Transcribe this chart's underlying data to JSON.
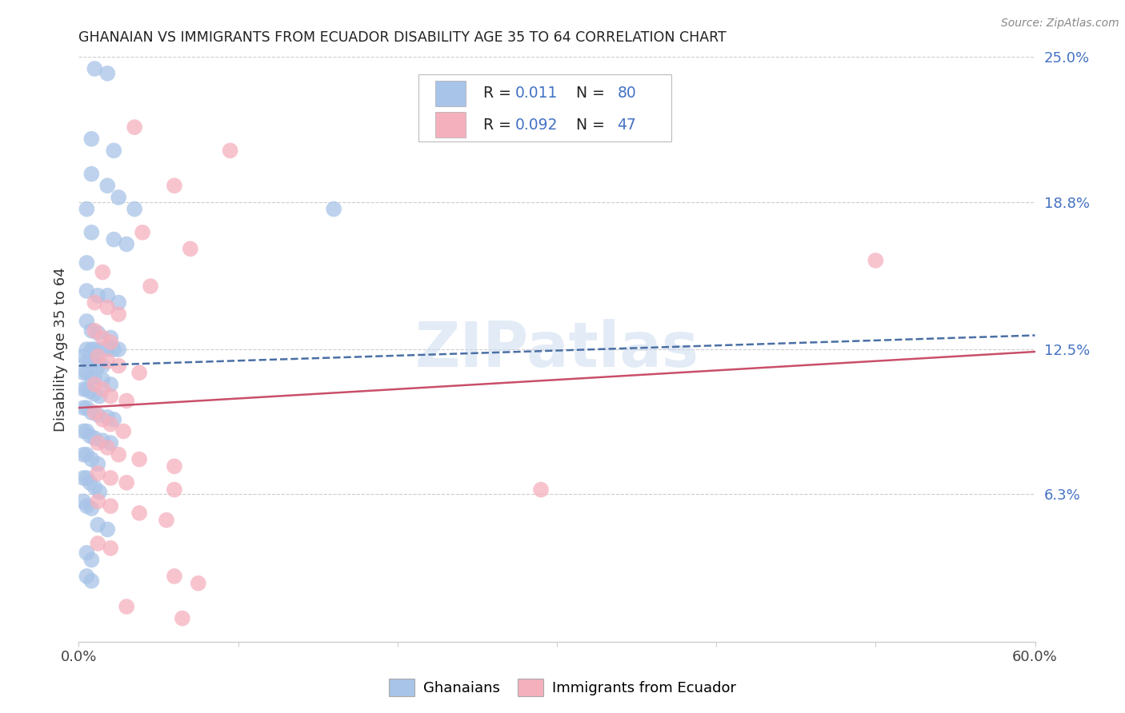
{
  "title": "GHANAIAN VS IMMIGRANTS FROM ECUADOR DISABILITY AGE 35 TO 64 CORRELATION CHART",
  "source": "Source: ZipAtlas.com",
  "ylabel": "Disability Age 35 to 64",
  "xlim": [
    0.0,
    0.6
  ],
  "ylim": [
    0.0,
    0.25
  ],
  "grid_yticks": [
    0.063,
    0.125,
    0.188,
    0.25
  ],
  "blue_color": "#a8c4e8",
  "pink_color": "#f5b0be",
  "blue_line_color": "#4a6fa5",
  "pink_line_color": "#c94f6a",
  "text_dark": "#222222",
  "text_blue": "#4472c4",
  "text_red": "#cc3355",
  "blue_scatter": [
    [
      0.01,
      0.245
    ],
    [
      0.018,
      0.243
    ],
    [
      0.008,
      0.215
    ],
    [
      0.022,
      0.21
    ],
    [
      0.008,
      0.2
    ],
    [
      0.018,
      0.195
    ],
    [
      0.025,
      0.19
    ],
    [
      0.035,
      0.185
    ],
    [
      0.005,
      0.185
    ],
    [
      0.008,
      0.175
    ],
    [
      0.022,
      0.172
    ],
    [
      0.03,
      0.17
    ],
    [
      0.005,
      0.162
    ],
    [
      0.005,
      0.15
    ],
    [
      0.012,
      0.148
    ],
    [
      0.018,
      0.148
    ],
    [
      0.025,
      0.145
    ],
    [
      0.005,
      0.137
    ],
    [
      0.008,
      0.133
    ],
    [
      0.012,
      0.132
    ],
    [
      0.02,
      0.13
    ],
    [
      0.005,
      0.125
    ],
    [
      0.008,
      0.125
    ],
    [
      0.01,
      0.125
    ],
    [
      0.014,
      0.125
    ],
    [
      0.018,
      0.125
    ],
    [
      0.022,
      0.125
    ],
    [
      0.025,
      0.125
    ],
    [
      0.003,
      0.122
    ],
    [
      0.005,
      0.12
    ],
    [
      0.007,
      0.12
    ],
    [
      0.01,
      0.12
    ],
    [
      0.012,
      0.118
    ],
    [
      0.015,
      0.118
    ],
    [
      0.003,
      0.115
    ],
    [
      0.005,
      0.115
    ],
    [
      0.008,
      0.113
    ],
    [
      0.01,
      0.113
    ],
    [
      0.015,
      0.112
    ],
    [
      0.02,
      0.11
    ],
    [
      0.003,
      0.108
    ],
    [
      0.005,
      0.108
    ],
    [
      0.007,
      0.107
    ],
    [
      0.01,
      0.106
    ],
    [
      0.013,
      0.105
    ],
    [
      0.003,
      0.1
    ],
    [
      0.005,
      0.1
    ],
    [
      0.008,
      0.098
    ],
    [
      0.012,
      0.097
    ],
    [
      0.018,
      0.096
    ],
    [
      0.022,
      0.095
    ],
    [
      0.003,
      0.09
    ],
    [
      0.005,
      0.09
    ],
    [
      0.007,
      0.088
    ],
    [
      0.01,
      0.087
    ],
    [
      0.015,
      0.086
    ],
    [
      0.02,
      0.085
    ],
    [
      0.003,
      0.08
    ],
    [
      0.005,
      0.08
    ],
    [
      0.008,
      0.078
    ],
    [
      0.012,
      0.076
    ],
    [
      0.003,
      0.07
    ],
    [
      0.005,
      0.07
    ],
    [
      0.007,
      0.068
    ],
    [
      0.01,
      0.066
    ],
    [
      0.013,
      0.064
    ],
    [
      0.003,
      0.06
    ],
    [
      0.005,
      0.058
    ],
    [
      0.008,
      0.057
    ],
    [
      0.012,
      0.05
    ],
    [
      0.018,
      0.048
    ],
    [
      0.005,
      0.038
    ],
    [
      0.008,
      0.035
    ],
    [
      0.005,
      0.028
    ],
    [
      0.008,
      0.026
    ],
    [
      0.16,
      0.185
    ]
  ],
  "pink_scatter": [
    [
      0.035,
      0.22
    ],
    [
      0.095,
      0.21
    ],
    [
      0.06,
      0.195
    ],
    [
      0.04,
      0.175
    ],
    [
      0.07,
      0.168
    ],
    [
      0.015,
      0.158
    ],
    [
      0.045,
      0.152
    ],
    [
      0.01,
      0.145
    ],
    [
      0.018,
      0.143
    ],
    [
      0.025,
      0.14
    ],
    [
      0.01,
      0.133
    ],
    [
      0.015,
      0.13
    ],
    [
      0.02,
      0.128
    ],
    [
      0.012,
      0.122
    ],
    [
      0.018,
      0.12
    ],
    [
      0.025,
      0.118
    ],
    [
      0.038,
      0.115
    ],
    [
      0.01,
      0.11
    ],
    [
      0.015,
      0.108
    ],
    [
      0.02,
      0.105
    ],
    [
      0.03,
      0.103
    ],
    [
      0.01,
      0.098
    ],
    [
      0.015,
      0.095
    ],
    [
      0.02,
      0.093
    ],
    [
      0.028,
      0.09
    ],
    [
      0.012,
      0.085
    ],
    [
      0.018,
      0.083
    ],
    [
      0.025,
      0.08
    ],
    [
      0.038,
      0.078
    ],
    [
      0.06,
      0.075
    ],
    [
      0.012,
      0.072
    ],
    [
      0.02,
      0.07
    ],
    [
      0.03,
      0.068
    ],
    [
      0.06,
      0.065
    ],
    [
      0.012,
      0.06
    ],
    [
      0.02,
      0.058
    ],
    [
      0.038,
      0.055
    ],
    [
      0.055,
      0.052
    ],
    [
      0.012,
      0.042
    ],
    [
      0.02,
      0.04
    ],
    [
      0.29,
      0.065
    ],
    [
      0.5,
      0.163
    ],
    [
      0.06,
      0.028
    ],
    [
      0.075,
      0.025
    ],
    [
      0.03,
      0.015
    ],
    [
      0.065,
      0.01
    ]
  ],
  "blue_trend_x": [
    0.0,
    0.6
  ],
  "blue_trend_y": [
    0.118,
    0.131
  ],
  "pink_trend_x": [
    0.0,
    0.6
  ],
  "pink_trend_y": [
    0.1,
    0.124
  ],
  "watermark": "ZIPatlas",
  "background_color": "#ffffff",
  "figsize": [
    14.06,
    8.92
  ],
  "dpi": 100
}
